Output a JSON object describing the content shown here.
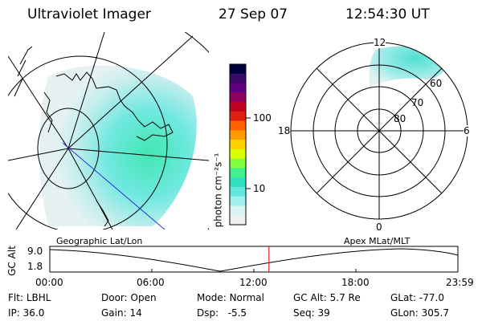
{
  "header": {
    "instrument": "Ultraviolet Imager",
    "date": "27 Sep 07",
    "time": "12:54:30 UT"
  },
  "colorbar": {
    "unit_label": "photon cm⁻²s⁻¹",
    "ticks": [
      "100",
      "10"
    ],
    "colors": [
      "#000040",
      "#3a0a6a",
      "#600080",
      "#900060",
      "#c00020",
      "#e02010",
      "#ff6000",
      "#ff9a00",
      "#ffd000",
      "#d8ff00",
      "#80ff40",
      "#40f090",
      "#30e0c0",
      "#60e8e0",
      "#a0f0f0",
      "#d8f4f4",
      "#f0f0f0"
    ]
  },
  "geo_map": {
    "label": "Geographic Lat/Lon"
  },
  "polar_plot": {
    "label": "Apex MLat/MLT",
    "lat_labels": [
      "60",
      "70",
      "80"
    ],
    "mlt_labels": {
      "top": "12",
      "left": "18",
      "right": "6",
      "bottom": "0"
    }
  },
  "altitude_track": {
    "axis_label": "GC Alt",
    "ytick_top": "9.0",
    "ytick_bottom": "1.8",
    "xticks": [
      "00:00",
      "06:00",
      "12:00",
      "18:00",
      "23:59"
    ],
    "current_time_fraction": 0.537
  },
  "status": {
    "filter_label": "Flt:",
    "filter_value": "LBHL",
    "ip_label": "IP:",
    "ip_value": "36.0",
    "door_label": "Door:",
    "door_value": "Open",
    "gain_label": "Gain:",
    "gain_value": "14",
    "mode_label": "Mode:",
    "mode_value": "Normal",
    "dsp_label": "Dsp:",
    "dsp_value": "-5.5",
    "gcalt_label": "GC Alt:",
    "gcalt_value": "5.7 Re",
    "seq_label": "Seq:",
    "seq_value": "39",
    "glat_label": "GLat:",
    "glat_value": "-77.0",
    "glon_label": "GLon:",
    "glon_value": "305.7"
  }
}
